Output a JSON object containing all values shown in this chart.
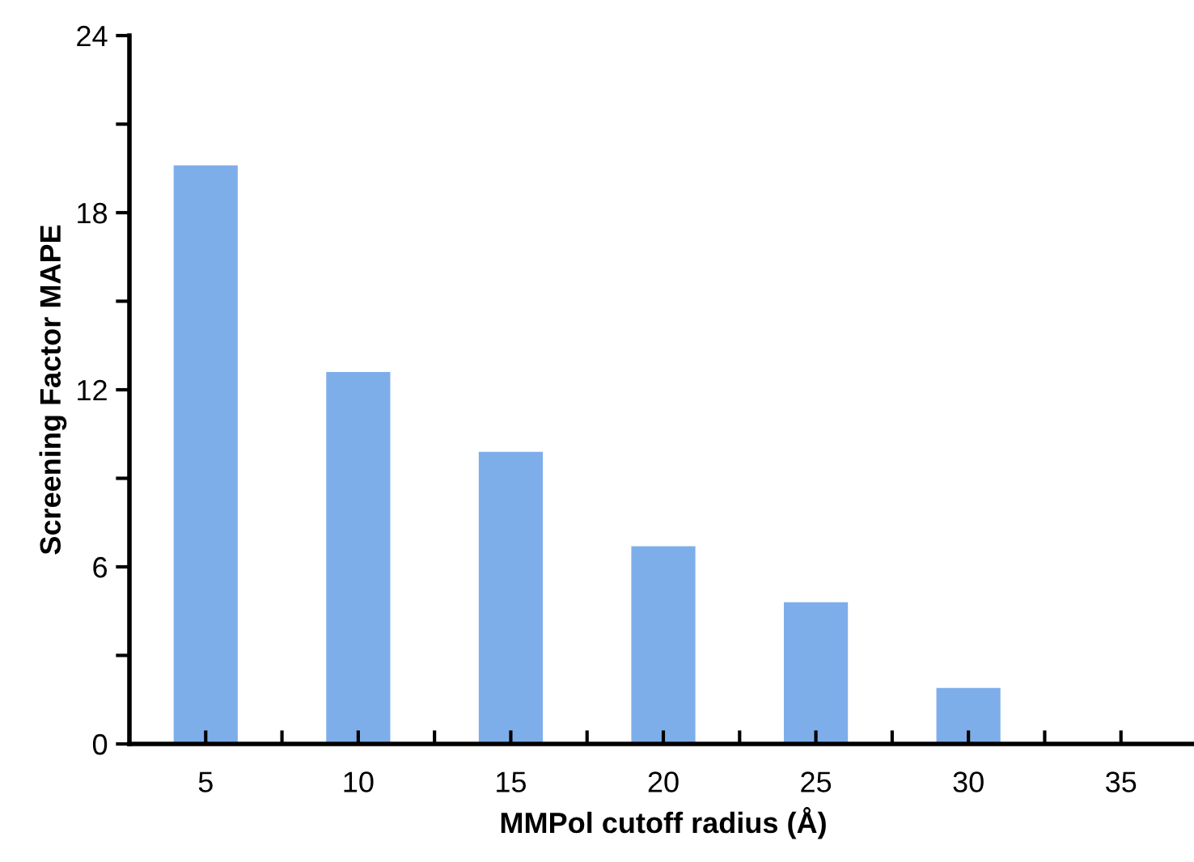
{
  "chart_data": {
    "type": "bar",
    "xlabel": "MMPol cutoff radius (Å)",
    "ylabel": "Screening Factor MAPE",
    "categories": [
      "5",
      "10",
      "15",
      "20",
      "25",
      "30",
      "35"
    ],
    "values": [
      19.6,
      12.6,
      9.9,
      6.7,
      4.8,
      1.9,
      0
    ],
    "color": "#7eaeea",
    "ylim": [
      0,
      24
    ],
    "yticks": [
      0,
      6,
      12,
      18,
      24
    ],
    "grid": false
  }
}
